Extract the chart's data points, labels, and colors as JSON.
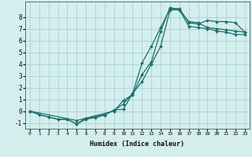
{
  "xlabel": "Humidex (Indice chaleur)",
  "ylabel": "",
  "xlim": [
    -0.5,
    23.5
  ],
  "ylim": [
    -1.5,
    9.3
  ],
  "bg_color": "#d4eeee",
  "grid_color": "#aad0d0",
  "line_color": "#1a7070",
  "line1_x": [
    0,
    1,
    2,
    3,
    4,
    5,
    6,
    7,
    8,
    9,
    10,
    11,
    12,
    13,
    14,
    15,
    16,
    17,
    18,
    19,
    20,
    21,
    22,
    23
  ],
  "line1_y": [
    0.0,
    -0.3,
    -0.5,
    -0.7,
    -0.7,
    -1.1,
    -0.7,
    -0.55,
    -0.35,
    0.1,
    0.15,
    1.5,
    4.1,
    5.5,
    7.1,
    8.7,
    8.7,
    7.5,
    7.4,
    7.7,
    7.6,
    7.6,
    7.5,
    6.7
  ],
  "line2_x": [
    0,
    1,
    2,
    3,
    4,
    5,
    6,
    7,
    8,
    9,
    10,
    11,
    12,
    13,
    14,
    15,
    16,
    17,
    18,
    19,
    20,
    21,
    22,
    23
  ],
  "line2_y": [
    0.0,
    -0.3,
    -0.5,
    -0.7,
    -0.7,
    -1.1,
    -0.6,
    -0.5,
    -0.3,
    0.05,
    0.6,
    1.5,
    2.5,
    4.0,
    5.5,
    8.6,
    8.6,
    7.2,
    7.1,
    7.0,
    6.8,
    6.7,
    6.5,
    6.5
  ],
  "line3_x": [
    0,
    5,
    9,
    10,
    11,
    12,
    13,
    14,
    15,
    16,
    17,
    18,
    19,
    20,
    21,
    22,
    23
  ],
  "line3_y": [
    0.0,
    -0.8,
    0.0,
    0.9,
    1.4,
    3.1,
    4.2,
    6.8,
    8.8,
    8.6,
    7.6,
    7.5,
    7.1,
    7.0,
    6.9,
    6.8,
    6.7
  ],
  "xticks": [
    0,
    1,
    2,
    3,
    4,
    5,
    6,
    7,
    8,
    9,
    10,
    11,
    12,
    13,
    14,
    15,
    16,
    17,
    18,
    19,
    20,
    21,
    22,
    23
  ],
  "yticks": [
    -1,
    0,
    1,
    2,
    3,
    4,
    5,
    6,
    7,
    8
  ],
  "xlabel_fontsize": 6.0,
  "tick_fontsize_x": 4.5,
  "tick_fontsize_y": 5.5,
  "linewidth": 0.9,
  "markersize": 2.0
}
